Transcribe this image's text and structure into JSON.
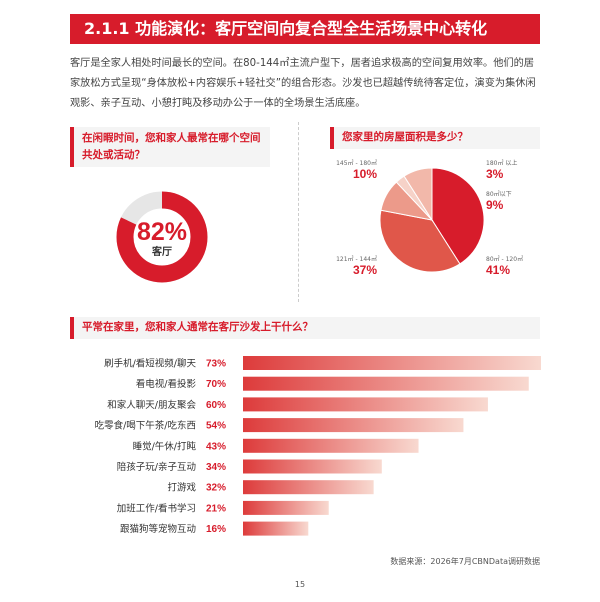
{
  "section": {
    "title": "2.1.1 功能演化：客厅空间向复合型全生活场景中心转化"
  },
  "intro": {
    "text": "客厅是全家人相处时间最长的空间。在80-144㎡主流户型下，居者追求极高的空间复用效率。他们的居家放松方式呈现“身体放松+内容娱乐+轻社交”的组合形态。沙发也已超越传统待客定位，演变为集休闲观影、亲子互动、小憩打盹及移动办公于一体的全场景生活底座。"
  },
  "colors": {
    "accent": "#d71c2b",
    "ring_track": "#e6e6e6",
    "bar_start": "#dd3b3b",
    "bar_end": "#f8d9d0"
  },
  "q1": {
    "question": "在闲暇时间，您和家人最常在哪个空间共处或活动？",
    "percent_text": "82%",
    "label": "客厅",
    "value": 82
  },
  "q2": {
    "question": "您家里的房屋面积是多少？"
  },
  "q3": {
    "question": "平常在家里，您和家人通常在客厅沙发上干什么？"
  },
  "chart_data": [
    {
      "type": "pie",
      "title": "您家里的房屋面积是多少？",
      "categories": [
        "80㎡ - 120㎡",
        "121㎡ - 144㎡",
        "145㎡ - 180㎡",
        "180㎡ 以上",
        "80㎡以下"
      ],
      "values": [
        41,
        37,
        10,
        3,
        9
      ],
      "labels": [
        "41%",
        "37%",
        "10%",
        "3%",
        "9%"
      ],
      "colors": [
        "#d71c2b",
        "#e0574a",
        "#ec9a8a",
        "#f6d2c8",
        "#f2b8aa"
      ]
    },
    {
      "type": "bar",
      "orientation": "horizontal",
      "title": "平常在家里，您和家人通常在客厅沙发上干什么？",
      "categories": [
        "刷手机/看短视频/聊天",
        "看电视/看投影",
        "和家人聊天/朋友聚会",
        "吃零食/喝下午茶/吃东西",
        "睡觉/午休/打盹",
        "陪孩子玩/亲子互动",
        "打游戏",
        "加班工作/看书学习",
        "跟猫狗等宠物互动"
      ],
      "values": [
        73,
        70,
        60,
        54,
        43,
        34,
        32,
        21,
        16
      ],
      "labels": [
        "73%",
        "70%",
        "60%",
        "54%",
        "43%",
        "34%",
        "32%",
        "21%",
        "16%"
      ],
      "xlim": [
        0,
        73
      ]
    }
  ],
  "footer": {
    "source": "数据来源：2026年7月CBNData调研数据",
    "page": "15"
  }
}
